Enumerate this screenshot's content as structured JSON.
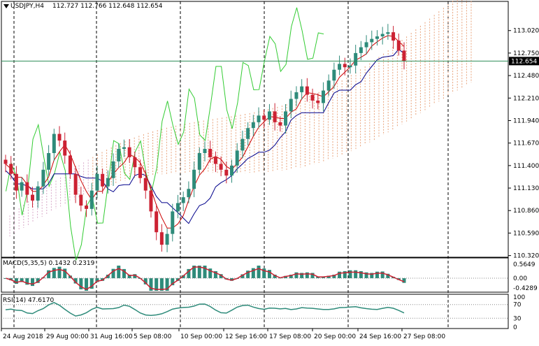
{
  "header": {
    "symbol": "USDJPY,H4",
    "ohlc": "112.727 112.766 112.648 112.654"
  },
  "macd_panel": {
    "label": "MACD(5,35,5) 0.1432 0.2319",
    "ticks": [
      "0.5649",
      "0.00",
      "-0.4289"
    ]
  },
  "rsi_panel": {
    "label": "RSI(14) 47.6170",
    "ticks": [
      "100",
      "70",
      "30",
      "0"
    ]
  },
  "colors": {
    "up_candle": "#2e8b7a",
    "down_candle": "#cc2233",
    "tenkan": "#cc0000",
    "kijun": "#00008b",
    "chikou": "#33cc33",
    "cloud_a": "#e8a27a",
    "cloud_b": "#d8a8c8",
    "macd_hist": "#2e8b7a",
    "macd_signal": "#cc2233",
    "rsi_line": "#2e8b7a",
    "price_line": "#2e8b57"
  },
  "chart_data": {
    "type": "candlestick",
    "title": "USDJPY,H4",
    "current_price": 112.654,
    "current_price_label": "112.654",
    "ylim": [
      110.3,
      113.37
    ],
    "y_ticks": [
      "113.020",
      "112.750",
      "112.480",
      "112.210",
      "111.940",
      "111.670",
      "111.400",
      "111.130",
      "110.860",
      "110.590",
      "110.320"
    ],
    "x_ticks": [
      "24 Aug 2018",
      "29 Aug 00:00",
      "31 Aug 16:00",
      "5 Sep 08:00",
      "10 Sep 00:00",
      "12 Sep 16:00",
      "17 Sep 08:00",
      "20 Sep 00:00",
      "24 Sep 16:00",
      "27 Sep 08:00"
    ],
    "grid": "vertical dashed",
    "close_series": [
      111.42,
      111.3,
      111.1,
      111.2,
      111.05,
      110.98,
      111.15,
      111.35,
      111.55,
      111.78,
      111.7,
      111.52,
      111.3,
      111.05,
      110.92,
      110.88,
      111.1,
      111.3,
      111.15,
      111.25,
      111.45,
      111.6,
      111.62,
      111.5,
      111.38,
      111.25,
      111.1,
      110.85,
      110.6,
      110.45,
      110.58,
      110.85,
      110.95,
      111.02,
      111.12,
      111.35,
      111.55,
      111.6,
      111.5,
      111.42,
      111.35,
      111.28,
      111.4,
      111.58,
      111.72,
      111.85,
      111.92,
      112.0,
      111.95,
      112.05,
      111.92,
      111.88,
      112.05,
      112.2,
      112.28,
      112.35,
      112.25,
      112.18,
      112.15,
      112.3,
      112.42,
      112.55,
      112.62,
      112.58,
      112.6,
      112.75,
      112.82,
      112.88,
      112.92,
      112.95,
      112.98,
      113.0,
      112.9,
      112.78,
      112.654
    ],
    "macd": {
      "label": "MACD(5,35,5)",
      "main": 0.1432,
      "signal": 0.2319
    },
    "rsi": {
      "label": "RSI(14)",
      "value": 47.617,
      "levels": [
        70,
        30
      ]
    }
  }
}
